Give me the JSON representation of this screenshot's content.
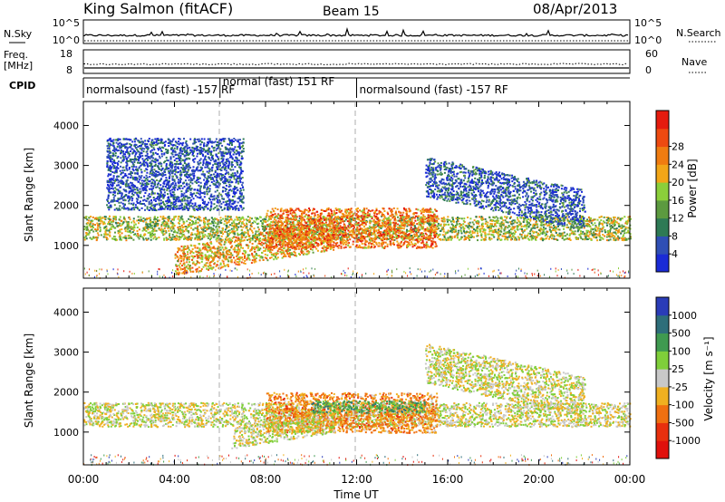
{
  "header": {
    "station": "King Salmon (fitACF)",
    "beam": "Beam 15",
    "date": "08/Apr/2013"
  },
  "top_panels": {
    "nsky_label": "N.Sky",
    "nsky_ticks": [
      "10^5",
      "10^0"
    ],
    "nsearch_label": "N.Search",
    "nsearch_ticks": [
      "10^5",
      "10^0"
    ],
    "freq_label_1": "Freq.",
    "freq_label_2": "[MHz]",
    "freq_ticks": [
      "18",
      "8"
    ],
    "nave_label": "Nave",
    "nave_ticks": [
      "60",
      "0"
    ],
    "cpid_label": "CPID",
    "cpid_segments": [
      {
        "label": "normalsound (fast) -157 RF",
        "start_hour": 0,
        "end_hour": 6.0
      },
      {
        "label": "normal (fast) 151 RF",
        "start_hour": 6.0,
        "end_hour": 12.0
      },
      {
        "label": "normalsound (fast) -157 RF",
        "start_hour": 12.0,
        "end_hour": 24.0
      }
    ]
  },
  "chart_data": [
    {
      "type": "heatmap",
      "name": "power-panel",
      "ylabel": "Slant Range [km]",
      "yticks": [
        "1000",
        "2000",
        "3000",
        "4000"
      ],
      "ylim": [
        180,
        4600
      ],
      "xlim": [
        0,
        24
      ],
      "colorbar": {
        "label": "Power [dB]",
        "ticks": [
          "4",
          "8",
          "12",
          "16",
          "20",
          "24",
          "28"
        ],
        "colors": [
          "#1a2bd6",
          "#2f4fb5",
          "#2e7a55",
          "#5c9a3f",
          "#8bcf3a",
          "#f2a618",
          "#f07c10",
          "#ee4a10",
          "#e51b0e"
        ]
      },
      "regions": [
        {
          "name": "main-band",
          "x_start": 0,
          "x_end": 24,
          "range_center": 1450,
          "range_width": 300,
          "level": 0.55
        },
        {
          "name": "lower-echo",
          "x_start": 4,
          "x_end": 11,
          "range_center": 900,
          "range_width": 350,
          "level": 0.7
        },
        {
          "name": "noon-strong",
          "x_start": 8,
          "x_end": 15.5,
          "range_center": 1450,
          "range_width": 500,
          "level": 0.85
        },
        {
          "name": "morning-scatter",
          "x_start": 1,
          "x_end": 7,
          "range_center": 2800,
          "range_width": 900,
          "level": 0.15
        },
        {
          "name": "afternoon-arc",
          "x_start": 15,
          "x_end": 22,
          "range_center": 2100,
          "range_width": 500,
          "level": 0.2
        }
      ]
    },
    {
      "type": "heatmap",
      "name": "velocity-panel",
      "ylabel": "Slant Range [km]",
      "yticks": [
        "1000",
        "2000",
        "3000",
        "4000"
      ],
      "ylim": [
        180,
        4600
      ],
      "xlim": [
        0,
        24
      ],
      "xlabel": "Time UT",
      "xticks": [
        "00:00",
        "04:00",
        "08:00",
        "12:00",
        "16:00",
        "20:00",
        "00:00"
      ],
      "colorbar": {
        "label": "Velocity [m s⁻¹]",
        "ticks": [
          "1000",
          "500",
          "100",
          "25",
          "-25",
          "-100",
          "-500",
          "-1000"
        ],
        "colors": [
          "#2a3cb8",
          "#2e6e7a",
          "#3f9a50",
          "#7fcf3a",
          "#c8c8c8",
          "#f0b020",
          "#f07010",
          "#e8300e",
          "#e0100c"
        ]
      },
      "regions": [
        {
          "name": "ground-scatter-band",
          "x_start": 0,
          "x_end": 24,
          "range_center": 1450,
          "range_width": 300,
          "velocity": 0
        },
        {
          "name": "noon-away",
          "x_start": 8,
          "x_end": 15.5,
          "range_center": 1500,
          "range_width": 500,
          "velocity": -300
        },
        {
          "name": "noon-toward",
          "x_start": 10,
          "x_end": 15,
          "range_center": 1650,
          "range_width": 150,
          "velocity": 300
        },
        {
          "name": "lower-gs",
          "x_start": 6.5,
          "x_end": 11,
          "range_center": 900,
          "range_width": 250,
          "velocity": 0
        },
        {
          "name": "afternoon-arc-gs",
          "x_start": 15,
          "x_end": 22,
          "range_center": 2100,
          "range_width": 500,
          "velocity": 0
        }
      ]
    }
  ]
}
